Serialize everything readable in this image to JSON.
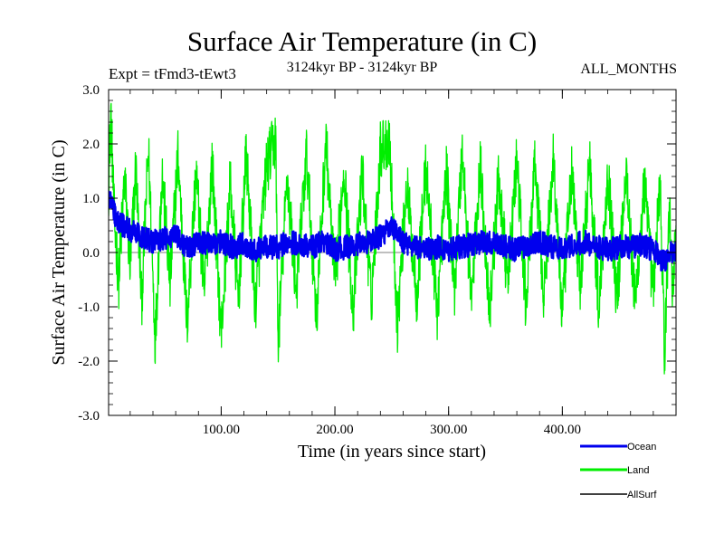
{
  "chart_data": {
    "type": "line",
    "title": "Surface Air Temperature (in C)",
    "expt_label": "Expt = tFmd3-tEwt3",
    "subtitle": "3124kyr BP - 3124kyr BP",
    "period": "ALL_MONTHS",
    "xlabel": "Time (in years since start)",
    "ylabel": "Surface Air Temperature (in C)",
    "xlim": [
      1,
      500
    ],
    "ylim": [
      -3.0,
      3.0
    ],
    "xticks": [
      100,
      200,
      300,
      400
    ],
    "xtick_labels": [
      "100.00",
      "200.00",
      "300.00",
      "400.00"
    ],
    "yticks": [
      3.0,
      2.0,
      1.0,
      0.0,
      -1.0,
      -2.0,
      -3.0
    ],
    "ytick_labels": [
      "3.0",
      "2.0",
      "1.0",
      "0.0",
      "-1.0",
      "-2.0",
      "-3.0"
    ],
    "legend_position": "bottom-right",
    "series": [
      {
        "name": "Land",
        "color": "#00ee00",
        "keypoints": [
          [
            1,
            1.2
          ],
          [
            3,
            2.6
          ],
          [
            6,
            0.6
          ],
          [
            10,
            -0.5
          ],
          [
            15,
            1.4
          ],
          [
            20,
            -0.3
          ],
          [
            25,
            1.6
          ],
          [
            30,
            -0.9
          ],
          [
            36,
            1.9
          ],
          [
            42,
            -1.6
          ],
          [
            48,
            1.5
          ],
          [
            55,
            -0.6
          ],
          [
            62,
            1.8
          ],
          [
            70,
            -1.3
          ],
          [
            78,
            1.5
          ],
          [
            85,
            -0.8
          ],
          [
            92,
            1.7
          ],
          [
            100,
            -1.5
          ],
          [
            108,
            1.3
          ],
          [
            115,
            -0.9
          ],
          [
            122,
            1.8
          ],
          [
            130,
            -1.0
          ],
          [
            140,
            1.6
          ],
          [
            148,
            2.1
          ],
          [
            150,
            -1.7
          ],
          [
            158,
            1.4
          ],
          [
            166,
            -0.7
          ],
          [
            175,
            1.8
          ],
          [
            184,
            -1.2
          ],
          [
            192,
            2.1
          ],
          [
            200,
            -0.6
          ],
          [
            208,
            1.6
          ],
          [
            216,
            -1.1
          ],
          [
            224,
            1.5
          ],
          [
            232,
            -0.9
          ],
          [
            240,
            1.9
          ],
          [
            248,
            2.1
          ],
          [
            255,
            -1.3
          ],
          [
            263,
            1.3
          ],
          [
            272,
            -0.8
          ],
          [
            280,
            1.6
          ],
          [
            290,
            -1.1
          ],
          [
            298,
            1.5
          ],
          [
            305,
            -0.7
          ],
          [
            312,
            1.9
          ],
          [
            320,
            -0.9
          ],
          [
            328,
            1.6
          ],
          [
            336,
            -1.1
          ],
          [
            344,
            1.4
          ],
          [
            352,
            -0.6
          ],
          [
            360,
            1.7
          ],
          [
            368,
            -1.0
          ],
          [
            376,
            1.6
          ],
          [
            384,
            -0.8
          ],
          [
            392,
            1.8
          ],
          [
            400,
            -1.2
          ],
          [
            408,
            1.5
          ],
          [
            416,
            -0.7
          ],
          [
            424,
            1.7
          ],
          [
            432,
            -1.0
          ],
          [
            440,
            1.5
          ],
          [
            448,
            -0.9
          ],
          [
            456,
            1.6
          ],
          [
            464,
            -1.0
          ],
          [
            472,
            1.3
          ],
          [
            480,
            -0.8
          ],
          [
            486,
            1.4
          ],
          [
            490,
            -2.0
          ],
          [
            494,
            0.9
          ],
          [
            497,
            -0.7
          ],
          [
            500,
            0.5
          ]
        ]
      },
      {
        "name": "Ocean",
        "color": "#0000ee",
        "keypoints": [
          [
            1,
            1.0
          ],
          [
            4,
            0.9
          ],
          [
            8,
            0.6
          ],
          [
            14,
            0.5
          ],
          [
            20,
            0.4
          ],
          [
            30,
            0.3
          ],
          [
            40,
            0.2
          ],
          [
            50,
            0.25
          ],
          [
            60,
            0.3
          ],
          [
            70,
            0.1
          ],
          [
            80,
            0.2
          ],
          [
            90,
            0.15
          ],
          [
            100,
            0.2
          ],
          [
            110,
            0.1
          ],
          [
            120,
            0.15
          ],
          [
            130,
            0.05
          ],
          [
            140,
            0.1
          ],
          [
            150,
            0.1
          ],
          [
            160,
            0.2
          ],
          [
            170,
            0.15
          ],
          [
            180,
            0.1
          ],
          [
            190,
            0.2
          ],
          [
            200,
            0.05
          ],
          [
            210,
            0.1
          ],
          [
            220,
            0.15
          ],
          [
            230,
            0.2
          ],
          [
            240,
            0.3
          ],
          [
            250,
            0.45
          ],
          [
            260,
            0.2
          ],
          [
            270,
            0.1
          ],
          [
            280,
            0.05
          ],
          [
            290,
            0.1
          ],
          [
            300,
            0.05
          ],
          [
            310,
            0.1
          ],
          [
            320,
            0.15
          ],
          [
            330,
            0.2
          ],
          [
            340,
            0.15
          ],
          [
            350,
            0.1
          ],
          [
            360,
            0.05
          ],
          [
            370,
            0.15
          ],
          [
            380,
            0.2
          ],
          [
            390,
            0.1
          ],
          [
            400,
            0.1
          ],
          [
            410,
            0.15
          ],
          [
            420,
            0.2
          ],
          [
            430,
            0.1
          ],
          [
            440,
            0.05
          ],
          [
            450,
            0.1
          ],
          [
            460,
            0.1
          ],
          [
            470,
            0.15
          ],
          [
            480,
            0.05
          ],
          [
            490,
            -0.2
          ],
          [
            495,
            0.0
          ],
          [
            500,
            0.0
          ]
        ]
      },
      {
        "name": "AllSurf",
        "color": "#000000",
        "keypoints": []
      }
    ]
  }
}
